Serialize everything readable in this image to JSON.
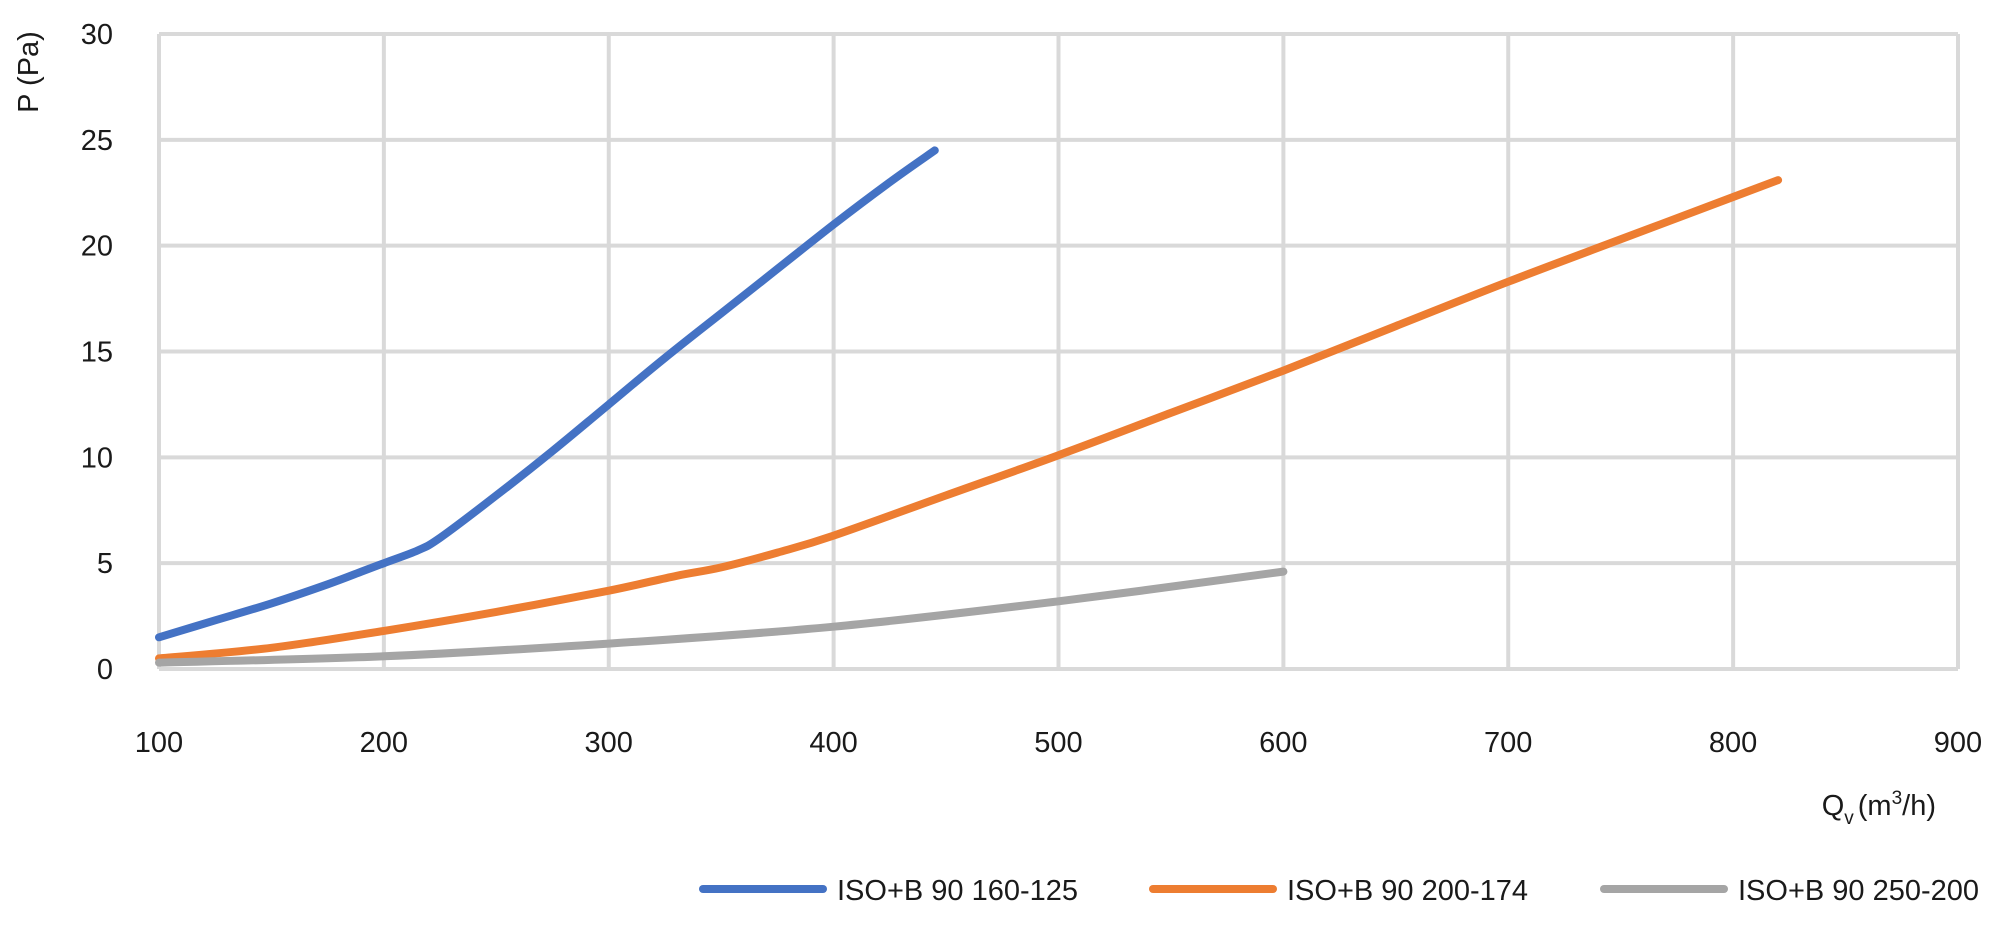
{
  "chart_data": {
    "type": "line",
    "title": "",
    "ylabel": "P (Pa)",
    "xlabel": {
      "base": "Q",
      "sub": "v",
      "unit_pre": "(m",
      "sup": "3",
      "unit_post": "/h)"
    },
    "xlim": [
      100,
      900
    ],
    "ylim": [
      0,
      30
    ],
    "xticks": [
      "100",
      "200",
      "300",
      "400",
      "500",
      "600",
      "700",
      "800",
      "900"
    ],
    "yticks": [
      "0",
      "5",
      "10",
      "15",
      "20",
      "25",
      "30"
    ],
    "grid": true,
    "legend_position": "bottom-right",
    "series": [
      {
        "name": "ISO+B 90 160-125",
        "color": "#4472C4",
        "x": [
          100,
          125,
          150,
          175,
          190,
          200,
          215,
          225,
          250,
          275,
          300,
          325,
          350,
          375,
          400,
          425,
          445
        ],
        "y": [
          1.5,
          2.3,
          3.1,
          4.0,
          4.6,
          5.0,
          5.6,
          6.2,
          8.2,
          10.3,
          12.5,
          14.7,
          16.8,
          18.9,
          21.0,
          23.0,
          24.5
        ]
      },
      {
        "name": "ISO+B 90 200-174",
        "color": "#ED7D31",
        "x": [
          100,
          150,
          200,
          250,
          300,
          330,
          350,
          375,
          400,
          450,
          500,
          550,
          600,
          650,
          700,
          750,
          800,
          820
        ],
        "y": [
          0.5,
          1.0,
          1.8,
          2.7,
          3.7,
          4.4,
          4.8,
          5.5,
          6.3,
          8.2,
          10.1,
          12.1,
          14.1,
          16.2,
          18.3,
          20.3,
          22.3,
          23.1
        ]
      },
      {
        "name": "ISO+B 90 250-200",
        "color": "#A5A5A5",
        "x": [
          100,
          200,
          300,
          400,
          500,
          600
        ],
        "y": [
          0.3,
          0.6,
          1.2,
          2.0,
          3.2,
          4.6
        ]
      }
    ]
  }
}
